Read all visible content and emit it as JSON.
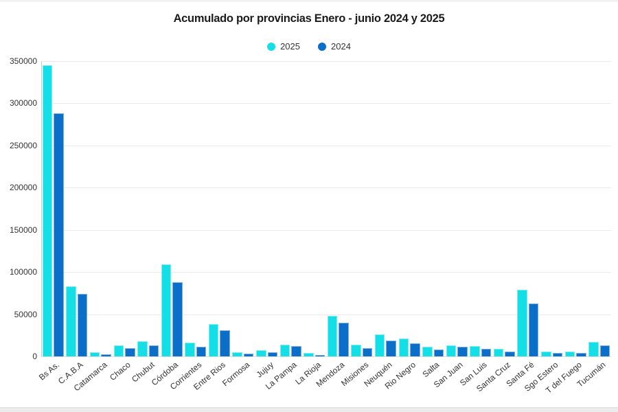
{
  "chart_data": {
    "type": "bar",
    "title": "Acumulado por provincias Enero  - junio 2024 y 2025",
    "categories": [
      "Bs As.",
      "C.A.B.A",
      "Catamarca",
      "Chaco",
      "Chubut",
      "Córdoba",
      "Corrientes",
      "Entre Rios",
      "Formosa",
      "Jujuy",
      "La Pampa",
      "La Rioja",
      "Mendoza",
      "Misiones",
      "Neuquén",
      "Rio Negro",
      "Salta",
      "San Juan",
      "San Luis",
      "Santa Cruz",
      "Santa Fé",
      "Sgo Estero",
      "T del Fuego",
      "Tucumán"
    ],
    "series": [
      {
        "name": "2025",
        "color": "#15dfe6",
        "values": [
          345000,
          83000,
          4500,
          13000,
          18000,
          109000,
          16000,
          38000,
          5000,
          7000,
          14000,
          4000,
          48000,
          13500,
          26000,
          21000,
          11000,
          13000,
          12000,
          9000,
          79000,
          6000,
          5500,
          17500
        ]
      },
      {
        "name": "2024",
        "color": "#0b6ec8",
        "values": [
          288000,
          74000,
          2500,
          9500,
          13000,
          88000,
          11500,
          31000,
          3000,
          5000,
          12000,
          2000,
          40000,
          10000,
          18500,
          15500,
          8000,
          11000,
          9000,
          6000,
          63000,
          4200,
          4300,
          13000
        ]
      }
    ],
    "xlabel": "",
    "ylabel": "",
    "ylim": [
      0,
      350000
    ],
    "ytick_step": 50000,
    "ytick_labels": [
      "0",
      "50000",
      "100000",
      "150000",
      "200000",
      "250000",
      "300000",
      "350000"
    ],
    "grid": true,
    "legend_position": "top-center"
  }
}
